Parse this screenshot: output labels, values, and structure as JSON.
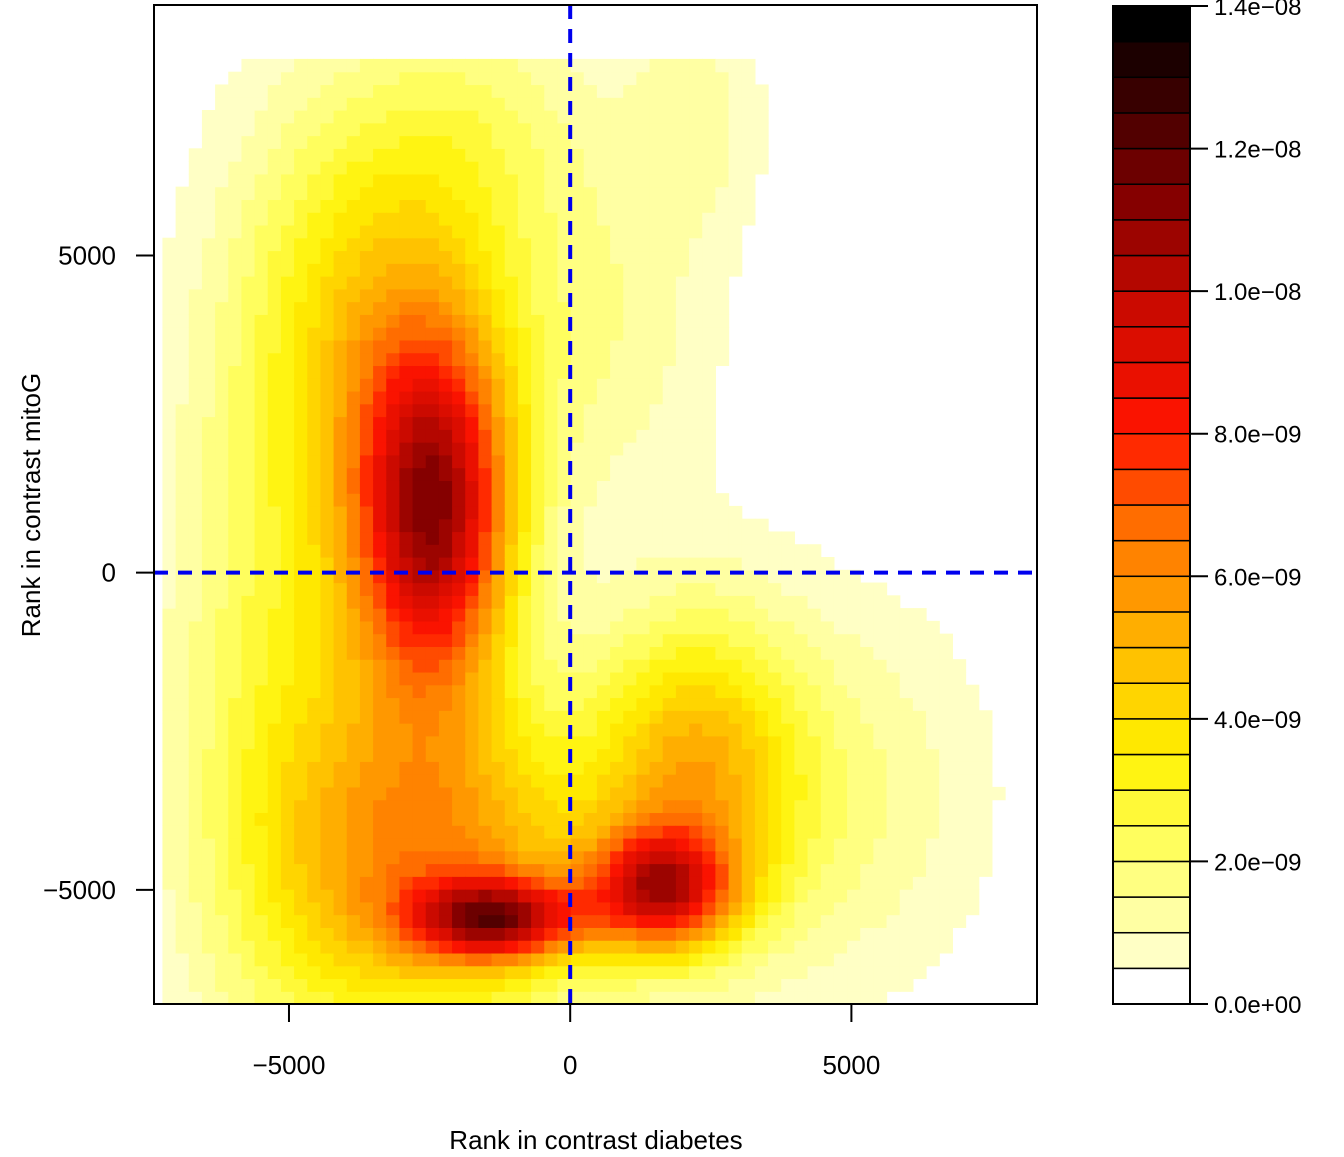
{
  "chart_data": {
    "type": "heatmap",
    "title": "",
    "xlabel": "Rank in contrast diabetes",
    "ylabel": "Rank in contrast mitoG",
    "xlim": [
      -7400,
      8300
    ],
    "ylim": [
      -6800,
      8950
    ],
    "x_ticks": [
      {
        "value": -5000,
        "label": "−5000"
      },
      {
        "value": 0,
        "label": "0"
      },
      {
        "value": 5000,
        "label": "5000"
      }
    ],
    "y_ticks": [
      {
        "value": -5000,
        "label": "−5000"
      },
      {
        "value": 0,
        "label": "0"
      },
      {
        "value": 5000,
        "label": "5000"
      }
    ],
    "reference_lines": {
      "x": 0,
      "y": 0,
      "color": "#0000EE",
      "style": "dashed"
    },
    "colorbar": {
      "levels": 28,
      "min": 0,
      "max": 1.4e-08,
      "ticks": [
        {
          "value": 0,
          "label": "0.0e+00"
        },
        {
          "value": 2e-09,
          "label": "2.0e−09"
        },
        {
          "value": 4e-09,
          "label": "4.0e−09"
        },
        {
          "value": 6e-09,
          "label": "6.0e−09"
        },
        {
          "value": 8e-09,
          "label": "8.0e−09"
        },
        {
          "value": 1e-08,
          "label": "1.0e−08"
        },
        {
          "value": 1.2e-08,
          "label": "1.2e−08"
        },
        {
          "value": 1.4e-08,
          "label": "1.4e−08"
        }
      ]
    },
    "density_peaks": [
      {
        "x": -2400,
        "y": 900,
        "sx": 1000,
        "sy": 2000,
        "amplitude": 9.4e-09
      },
      {
        "x": -1300,
        "y": -5450,
        "sx": 1050,
        "sy": 450,
        "amplitude": 7.5e-09
      },
      {
        "x": 1600,
        "y": -5000,
        "sx": 900,
        "sy": 650,
        "amplitude": 7.2e-09
      },
      {
        "x": -2200,
        "y": -4600,
        "sx": 2000,
        "sy": 1900,
        "amplitude": 5.4e-09
      },
      {
        "x": 2200,
        "y": -3200,
        "sx": 1300,
        "sy": 1800,
        "amplitude": 4.6e-09
      },
      {
        "x": -3400,
        "y": 4200,
        "sx": 1700,
        "sy": 2500,
        "amplitude": 3.5e-09
      },
      {
        "x": -4900,
        "y": -2000,
        "sx": 1600,
        "sy": 4200,
        "amplitude": 2.6e-09
      },
      {
        "x": 4800,
        "y": -3500,
        "sx": 1900,
        "sy": 2200,
        "amplitude": 1.5e-09
      },
      {
        "x": 600,
        "y": 3800,
        "sx": 1500,
        "sy": 2000,
        "amplitude": 1.3e-09
      },
      {
        "x": 2200,
        "y": 7200,
        "sx": 900,
        "sy": 1300,
        "amplitude": 1.2e-09
      },
      {
        "x": -1500,
        "y": 7000,
        "sx": 1500,
        "sy": 1500,
        "amplitude": 1.3e-09
      }
    ]
  }
}
